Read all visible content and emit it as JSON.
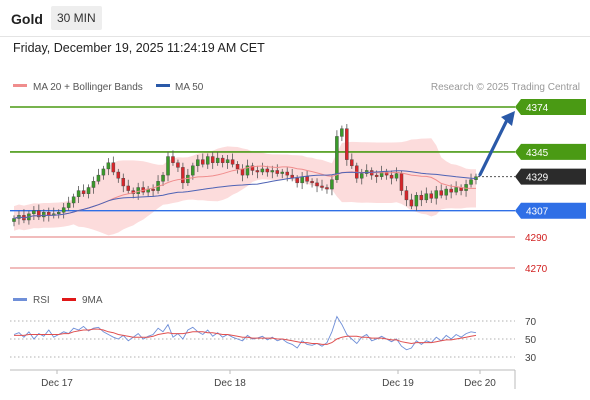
{
  "header": {
    "title": "Gold",
    "interval": "30 MIN",
    "timestamp": "Friday, December 19, 2025 11:24:19 AM CET"
  },
  "legend": {
    "ma20": "MA 20 + Bollinger Bands",
    "ma50": "MA 50",
    "credit": "Research © 2025 Trading Central",
    "rsi": "RSI",
    "ma9": "9MA"
  },
  "colors": {
    "bull": "#3a9a2a",
    "bear": "#d6262b",
    "bollinger": "#fbd6d6",
    "ma20": "#f08d8d",
    "ma50": "#4e63b5",
    "resistance": "#4a9a14",
    "support": "#2f6fe6",
    "support_red": "#e37a7a",
    "current": "#2b2b2b",
    "arrow": "#2a59a8",
    "rsi": "#6f8fd8",
    "rsi_ma": "#e05050"
  },
  "chart_data": [
    {
      "type": "candlestick",
      "x_labels": [
        "Dec 17",
        "Dec 18",
        "Dec 19",
        "Dec 20"
      ],
      "ylim": [
        4255,
        4385
      ],
      "levels": [
        {
          "value": 4374,
          "label": "4374",
          "kind": "resistance"
        },
        {
          "value": 4345,
          "label": "4345",
          "kind": "resistance"
        },
        {
          "value": 4329,
          "label": "4329",
          "kind": "current"
        },
        {
          "value": 4307,
          "label": "4307",
          "kind": "support"
        },
        {
          "value": 4290,
          "label": "4290",
          "kind": "support-minor"
        },
        {
          "value": 4270,
          "label": "4270",
          "kind": "support-minor"
        }
      ],
      "close": [
        4302,
        4304,
        4301,
        4305,
        4307,
        4303,
        4306,
        4304,
        4305,
        4306,
        4309,
        4312,
        4316,
        4320,
        4318,
        4322,
        4326,
        4330,
        4334,
        4338,
        4332,
        4328,
        4323,
        4320,
        4318,
        4322,
        4319,
        4321,
        4320,
        4326,
        4330,
        4342,
        4338,
        4335,
        4325,
        4330,
        4336,
        4340,
        4337,
        4342,
        4338,
        4341,
        4338,
        4340,
        4337,
        4334,
        4330,
        4336,
        4333,
        4332,
        4334,
        4332,
        4333,
        4331,
        4332,
        4330,
        4328,
        4325,
        4329,
        4326,
        4325,
        4323,
        4322,
        4321,
        4327,
        4355,
        4360,
        4340,
        4336,
        4328,
        4331,
        4333,
        4330,
        4329,
        4332,
        4330,
        4328,
        4331,
        4320,
        4314,
        4310,
        4317,
        4314,
        4318,
        4315,
        4320,
        4317,
        4321,
        4319,
        4322,
        4320,
        4324,
        4327,
        4329
      ]
    },
    {
      "type": "line",
      "name": "RSI",
      "yticks": [
        70,
        50,
        30
      ],
      "ylim": [
        20,
        80
      ],
      "rsi": [
        55,
        57,
        52,
        58,
        50,
        56,
        53,
        60,
        52,
        55,
        58,
        56,
        62,
        60,
        64,
        59,
        62,
        63,
        58,
        55,
        52,
        50,
        54,
        48,
        52,
        56,
        50,
        53,
        55,
        62,
        58,
        66,
        52,
        56,
        50,
        60,
        63,
        58,
        55,
        60,
        53,
        57,
        52,
        55,
        52,
        50,
        48,
        54,
        50,
        51,
        53,
        49,
        52,
        48,
        50,
        46,
        44,
        40,
        48,
        44,
        43,
        45,
        42,
        46,
        58,
        75,
        66,
        55,
        50,
        45,
        52,
        55,
        48,
        50,
        53,
        50,
        47,
        50,
        42,
        38,
        40,
        48,
        44,
        48,
        46,
        52,
        48,
        54,
        50,
        55,
        52,
        56,
        58,
        57
      ],
      "ma9": [
        54,
        54,
        54,
        55,
        55,
        55,
        55,
        55,
        55,
        55,
        56,
        56,
        58,
        59,
        60,
        60,
        61,
        61,
        60,
        58,
        57,
        55,
        54,
        53,
        52,
        52,
        52,
        52,
        53,
        55,
        56,
        57,
        56,
        56,
        56,
        57,
        58,
        58,
        58,
        57,
        57,
        56,
        55,
        55,
        54,
        53,
        52,
        52,
        51,
        51,
        51,
        51,
        51,
        50,
        50,
        49,
        48,
        47,
        46,
        46,
        45,
        45,
        44,
        44,
        46,
        50,
        52,
        53,
        53,
        53,
        52,
        52,
        51,
        51,
        51,
        50,
        49,
        49,
        47,
        46,
        45,
        46,
        46,
        46,
        46,
        47,
        48,
        49,
        49,
        50,
        51,
        52,
        53,
        54
      ]
    }
  ]
}
